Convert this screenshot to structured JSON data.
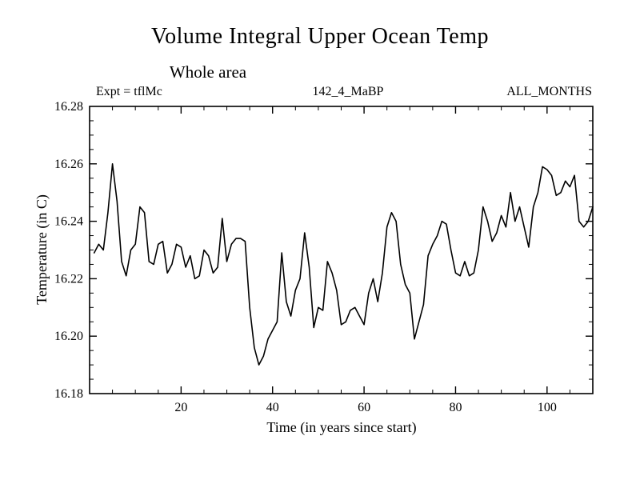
{
  "header": {
    "expt_label": "Expt = tflMc",
    "run_label": "142_4_MaBP",
    "months_label": "ALL_MONTHS"
  },
  "chart_data": {
    "type": "line",
    "title": "Volume Integral Upper Ocean Temp",
    "subtitle": "Whole area",
    "xlabel": "Time (in years since start)",
    "ylabel": "Temperature (in C)",
    "xlim": [
      0,
      110
    ],
    "ylim": [
      16.18,
      16.28
    ],
    "xticks": [
      20,
      40,
      60,
      80,
      100
    ],
    "xtick_labels": [
      "20",
      "40",
      "60",
      "80",
      "100"
    ],
    "xminor_step": 5,
    "yticks": [
      16.18,
      16.2,
      16.22,
      16.24,
      16.26,
      16.28
    ],
    "ytick_labels": [
      "16.18",
      "16.20",
      "16.22",
      "16.24",
      "16.26",
      "16.28"
    ],
    "yminor_step": 0.005,
    "grid": false,
    "line_color": "#000000",
    "x": [
      1,
      2,
      3,
      4,
      5,
      6,
      7,
      8,
      9,
      10,
      11,
      12,
      13,
      14,
      15,
      16,
      17,
      18,
      19,
      20,
      21,
      22,
      23,
      24,
      25,
      26,
      27,
      28,
      29,
      30,
      31,
      32,
      33,
      34,
      35,
      36,
      37,
      38,
      39,
      40,
      41,
      42,
      43,
      44,
      45,
      46,
      47,
      48,
      49,
      50,
      51,
      52,
      53,
      54,
      55,
      56,
      57,
      58,
      59,
      60,
      61,
      62,
      63,
      64,
      65,
      66,
      67,
      68,
      69,
      70,
      71,
      72,
      73,
      74,
      75,
      76,
      77,
      78,
      79,
      80,
      81,
      82,
      83,
      84,
      85,
      86,
      87,
      88,
      89,
      90,
      91,
      92,
      93,
      94,
      95,
      96,
      97,
      98,
      99,
      100,
      101,
      102,
      103,
      104,
      105,
      106,
      107,
      108,
      109,
      110
    ],
    "y": [
      16.229,
      16.232,
      16.23,
      16.243,
      16.26,
      16.247,
      16.226,
      16.221,
      16.23,
      16.232,
      16.245,
      16.243,
      16.226,
      16.225,
      16.232,
      16.233,
      16.222,
      16.225,
      16.232,
      16.231,
      16.224,
      16.228,
      16.22,
      16.221,
      16.23,
      16.228,
      16.222,
      16.224,
      16.241,
      16.226,
      16.232,
      16.234,
      16.234,
      16.233,
      16.21,
      16.196,
      16.19,
      16.193,
      16.199,
      16.202,
      16.205,
      16.229,
      16.212,
      16.207,
      16.216,
      16.22,
      16.236,
      16.224,
      16.203,
      16.21,
      16.209,
      16.226,
      16.222,
      16.216,
      16.204,
      16.205,
      16.209,
      16.21,
      16.207,
      16.204,
      16.215,
      16.22,
      16.212,
      16.222,
      16.238,
      16.243,
      16.24,
      16.225,
      16.218,
      16.215,
      16.199,
      16.205,
      16.211,
      16.228,
      16.232,
      16.235,
      16.24,
      16.239,
      16.23,
      16.222,
      16.221,
      16.226,
      16.221,
      16.222,
      16.23,
      16.245,
      16.24,
      16.233,
      16.236,
      16.242,
      16.238,
      16.25,
      16.24,
      16.245,
      16.238,
      16.231,
      16.245,
      16.25,
      16.259,
      16.258,
      16.256,
      16.249,
      16.25,
      16.254,
      16.252,
      16.256,
      16.24,
      16.238,
      16.24,
      16.245
    ]
  }
}
